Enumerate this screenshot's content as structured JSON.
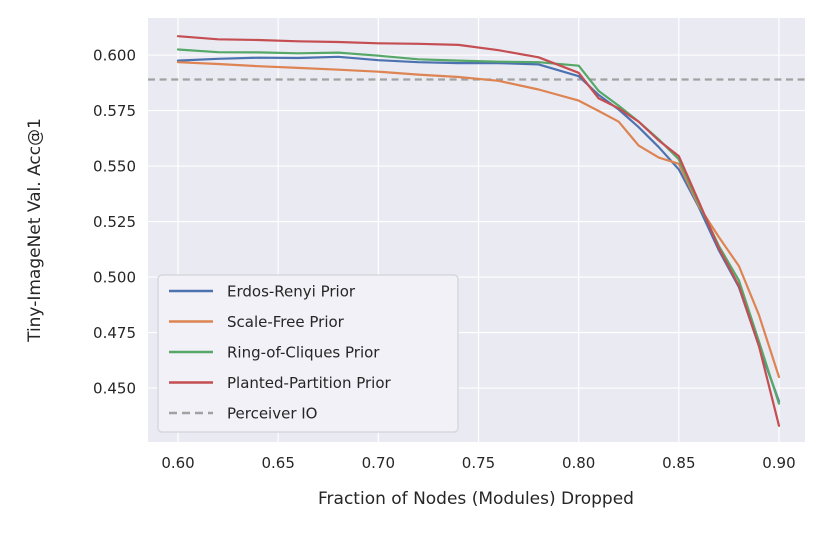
{
  "chart_data": {
    "type": "line",
    "title": "",
    "xlabel": "Fraction of Nodes (Modules) Dropped",
    "ylabel": "Tiny-ImageNet Val. Acc@1",
    "xlim": [
      0.585,
      0.913
    ],
    "ylim": [
      0.4257,
      0.6167
    ],
    "xticks": [
      0.6,
      0.65,
      0.7,
      0.75,
      0.8,
      0.85,
      0.9
    ],
    "xtick_labels": [
      "0.60",
      "0.65",
      "0.70",
      "0.75",
      "0.80",
      "0.85",
      "0.90"
    ],
    "yticks": [
      0.45,
      0.475,
      0.5,
      0.525,
      0.55,
      0.575,
      0.6
    ],
    "ytick_labels": [
      "0.450",
      "0.475",
      "0.500",
      "0.525",
      "0.550",
      "0.575",
      "0.600"
    ],
    "grid": true,
    "legend_position": "lower-left",
    "x": [
      0.6,
      0.62,
      0.64,
      0.66,
      0.68,
      0.7,
      0.72,
      0.74,
      0.76,
      0.78,
      0.8,
      0.81,
      0.82,
      0.83,
      0.84,
      0.85,
      0.86,
      0.87,
      0.88,
      0.89,
      0.9
    ],
    "series": [
      {
        "name": "Erdos-Renyi Prior",
        "color": "#4c72b0",
        "values": [
          0.5975,
          0.5983,
          0.5988,
          0.5987,
          0.5992,
          0.5977,
          0.5968,
          0.5964,
          0.5964,
          0.5958,
          0.5905,
          0.582,
          0.5755,
          0.5675,
          0.5585,
          0.5485,
          0.5315,
          0.512,
          0.4955,
          0.469,
          0.444
        ]
      },
      {
        "name": "Scale-Free Prior",
        "color": "#dd8452",
        "values": [
          0.5968,
          0.596,
          0.595,
          0.5942,
          0.5934,
          0.5925,
          0.5912,
          0.5901,
          0.5884,
          0.5845,
          0.5795,
          0.5748,
          0.57,
          0.5592,
          0.5538,
          0.551,
          0.532,
          0.518,
          0.505,
          0.483,
          0.455
        ]
      },
      {
        "name": "Ring-of-Cliques Prior",
        "color": "#55a868",
        "values": [
          0.6025,
          0.6013,
          0.6012,
          0.6008,
          0.6011,
          0.5997,
          0.5981,
          0.5975,
          0.597,
          0.5968,
          0.5952,
          0.5838,
          0.5772,
          0.57,
          0.562,
          0.553,
          0.533,
          0.514,
          0.4985,
          0.471,
          0.443
        ]
      },
      {
        "name": "Planted-Partition Prior",
        "color": "#c44e52",
        "values": [
          0.6085,
          0.6071,
          0.6068,
          0.6062,
          0.6059,
          0.6053,
          0.6051,
          0.6046,
          0.6022,
          0.599,
          0.592,
          0.5805,
          0.576,
          0.57,
          0.5615,
          0.5545,
          0.534,
          0.513,
          0.496,
          0.469,
          0.433
        ]
      }
    ],
    "reference_line": {
      "name": "Perceiver IO",
      "value": 0.589,
      "color": "#a2a2a2",
      "style": "dashed"
    },
    "legend_entries": [
      {
        "label": "Erdos-Renyi Prior",
        "color": "#4c72b0",
        "dashed": false
      },
      {
        "label": "Scale-Free Prior",
        "color": "#dd8452",
        "dashed": false
      },
      {
        "label": "Ring-of-Cliques Prior",
        "color": "#55a868",
        "dashed": false
      },
      {
        "label": "Planted-Partition Prior",
        "color": "#c44e52",
        "dashed": false
      },
      {
        "label": "Perceiver IO",
        "color": "#a2a2a2",
        "dashed": true
      }
    ],
    "colors": {
      "axes_background": "#eaeaf2",
      "grid": "#ffffff",
      "text": "#262626",
      "legend_background": "#f1f1f7",
      "legend_border": "#d2d2da"
    }
  }
}
